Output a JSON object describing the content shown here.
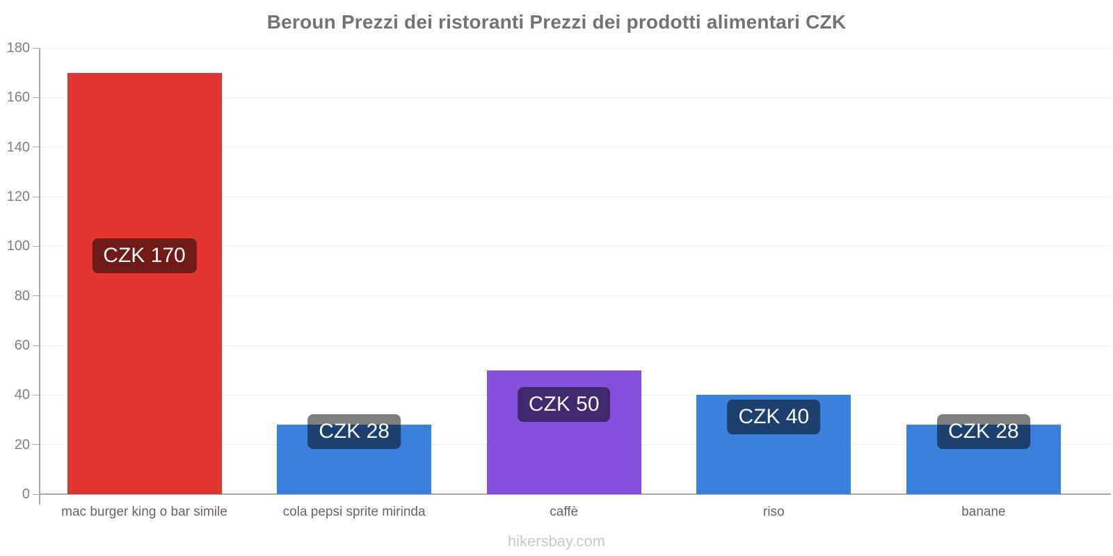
{
  "chart_data": {
    "type": "bar",
    "title": "Beroun Prezzi dei ristoranti Prezzi dei prodotti alimentari CZK",
    "categories": [
      "mac burger king o bar simile",
      "cola pepsi sprite mirinda",
      "caffè",
      "riso",
      "banane"
    ],
    "values": [
      170,
      28,
      50,
      40,
      28
    ],
    "value_labels": [
      "CZK 170",
      "CZK 28",
      "CZK 50",
      "CZK 40",
      "CZK 28"
    ],
    "bar_colors": [
      "#e1352f",
      "#3a80dc",
      "#8450dd",
      "#3a80dc",
      "#3a80dc"
    ],
    "currency": "CZK",
    "xlabel": "",
    "ylabel": "",
    "ylim": [
      0,
      180
    ],
    "yticks": [
      0,
      20,
      40,
      60,
      80,
      100,
      120,
      140,
      160,
      180
    ],
    "grid": true,
    "legend": false,
    "value_label_style": {
      "background": "rgba(0,0,0,0.5)",
      "text_color": "#ffffff"
    },
    "footer": "hikersbay.com"
  }
}
